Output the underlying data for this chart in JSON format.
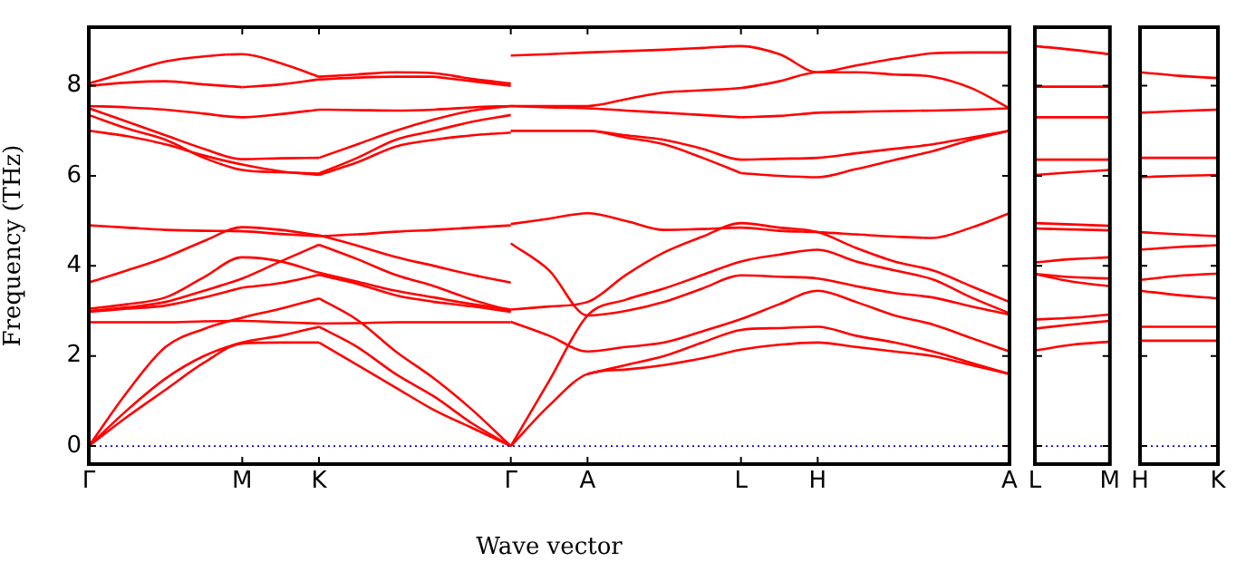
{
  "chart_data": [
    {
      "type": "line",
      "xlabel": "Wave vector",
      "ylabel": "Frequency (THz)",
      "ylim": [
        -0.4,
        9.3
      ],
      "yticks": [
        0,
        2,
        4,
        6,
        8
      ],
      "categories": [
        "Γ",
        null,
        null,
        null,
        "M",
        null,
        "K",
        null,
        null,
        null,
        null,
        "Γ",
        null,
        "A",
        null,
        null,
        null,
        "L",
        null,
        "H",
        null,
        null,
        null,
        null,
        "A"
      ],
      "legend": false,
      "grid": false,
      "marker": "none",
      "line_style": "solid",
      "ref_lines": [
        {
          "axis": "y",
          "value": 0,
          "color": "#0000ff",
          "line_style": "dotted"
        }
      ],
      "series": [
        {
          "color": "#ff0000",
          "values": [
            8.05,
            8.3,
            8.54,
            8.65,
            8.7,
            8.5,
            8.2,
            null,
            null,
            null,
            null,
            null,
            null,
            null,
            null,
            null,
            null,
            null,
            null,
            null,
            null,
            null,
            null,
            null,
            null
          ]
        },
        {
          "color": "#ff0000",
          "values": [
            8.0,
            8.07,
            8.1,
            8.03,
            7.97,
            null,
            null,
            null,
            null,
            null,
            null,
            null,
            null,
            null,
            null,
            null,
            null,
            null,
            null,
            null,
            null,
            null,
            null,
            null,
            null
          ]
        },
        {
          "color": "#ff0000",
          "values": [
            null,
            null,
            null,
            null,
            7.97,
            8.03,
            8.14,
            null,
            null,
            null,
            null,
            null,
            null,
            null,
            null,
            null,
            null,
            null,
            null,
            null,
            null,
            null,
            null,
            null,
            null
          ]
        },
        {
          "color": "#ff0000",
          "values": [
            7.55,
            7.52,
            7.47,
            7.38,
            7.3,
            7.37,
            7.47,
            null,
            null,
            null,
            null,
            null,
            null,
            null,
            null,
            null,
            null,
            null,
            null,
            null,
            null,
            null,
            null,
            null,
            null
          ]
        },
        {
          "color": "#ff0000",
          "values": [
            7.5,
            7.2,
            6.9,
            6.6,
            6.37,
            6.39,
            6.4,
            null,
            null,
            null,
            null,
            null,
            null,
            null,
            null,
            null,
            null,
            null,
            null,
            null,
            null,
            null,
            null,
            null,
            null
          ]
        },
        {
          "color": "#ff0000",
          "values": [
            7.35,
            7.05,
            6.8,
            6.4,
            6.13,
            6.08,
            6.05,
            null,
            null,
            null,
            null,
            null,
            null,
            null,
            null,
            null,
            null,
            null,
            null,
            null,
            null,
            null,
            null,
            null,
            null
          ]
        },
        {
          "color": "#ff0000",
          "values": [
            7.0,
            6.88,
            6.7,
            6.45,
            6.25,
            6.1,
            6.02,
            null,
            null,
            null,
            null,
            null,
            null,
            null,
            null,
            null,
            null,
            null,
            null,
            null,
            null,
            null,
            null,
            null,
            null
          ]
        },
        {
          "color": "#ff0000",
          "values": [
            4.9,
            4.85,
            4.8,
            4.78,
            4.77,
            4.71,
            4.66,
            null,
            null,
            null,
            null,
            null,
            null,
            null,
            null,
            null,
            null,
            null,
            null,
            null,
            null,
            null,
            null,
            null,
            null
          ]
        },
        {
          "color": "#ff0000",
          "values": [
            3.63,
            3.9,
            4.19,
            4.55,
            4.86,
            4.8,
            4.68,
            null,
            null,
            null,
            null,
            null,
            null,
            null,
            null,
            null,
            null,
            null,
            null,
            null,
            null,
            null,
            null,
            null,
            null
          ]
        },
        {
          "color": "#ff0000",
          "values": [
            3.05,
            3.15,
            3.3,
            3.75,
            4.19,
            4.1,
            3.85,
            null,
            null,
            null,
            null,
            null,
            null,
            null,
            null,
            null,
            null,
            null,
            null,
            null,
            null,
            null,
            null,
            null,
            null
          ]
        },
        {
          "color": "#ff0000",
          "values": [
            3.0,
            3.08,
            3.2,
            3.45,
            3.72,
            4.1,
            4.47,
            null,
            null,
            null,
            null,
            null,
            null,
            null,
            null,
            null,
            null,
            null,
            null,
            null,
            null,
            null,
            null,
            null,
            null
          ]
        },
        {
          "color": "#ff0000",
          "values": [
            2.98,
            3.05,
            3.12,
            3.3,
            3.52,
            null,
            null,
            null,
            null,
            null,
            null,
            null,
            null,
            null,
            null,
            null,
            null,
            null,
            null,
            null,
            null,
            null,
            null,
            null,
            null
          ]
        },
        {
          "color": "#ff0000",
          "values": [
            null,
            null,
            null,
            null,
            3.52,
            3.62,
            3.8,
            null,
            null,
            null,
            null,
            null,
            null,
            null,
            null,
            null,
            null,
            null,
            null,
            null,
            null,
            null,
            null,
            null,
            null
          ]
        },
        {
          "color": "#ff0000",
          "values": [
            2.75,
            2.75,
            2.75,
            2.77,
            2.78,
            2.75,
            2.72,
            null,
            null,
            null,
            null,
            null,
            null,
            null,
            null,
            null,
            null,
            null,
            null,
            null,
            null,
            null,
            null,
            null,
            null
          ]
        },
        {
          "color": "#ff0000",
          "values": [
            0,
            1.2,
            2.2,
            2.6,
            2.85,
            3.05,
            3.28,
            null,
            null,
            null,
            null,
            null,
            null,
            null,
            null,
            null,
            null,
            null,
            null,
            null,
            null,
            null,
            null,
            null,
            null
          ]
        },
        {
          "color": "#ff0000",
          "values": [
            0,
            0.8,
            1.5,
            2.0,
            2.3,
            2.45,
            2.65,
            null,
            null,
            null,
            null,
            null,
            null,
            null,
            null,
            null,
            null,
            null,
            null,
            null,
            null,
            null,
            null,
            null,
            null
          ]
        },
        {
          "color": "#ff0000",
          "values": [
            0,
            0.65,
            1.25,
            1.85,
            2.28,
            2.3,
            2.3,
            null,
            null,
            null,
            null,
            null,
            null,
            null,
            null,
            null,
            null,
            null,
            null,
            null,
            null,
            null,
            null,
            null,
            null
          ]
        },
        {
          "color": "#ff0000",
          "values": [
            null,
            null,
            null,
            null,
            null,
            null,
            8.2,
            8.25,
            8.3,
            8.28,
            8.15,
            8.05,
            null,
            null,
            null,
            null,
            null,
            null,
            null,
            null,
            null,
            null,
            null,
            null,
            null
          ]
        },
        {
          "color": "#ff0000",
          "values": [
            null,
            null,
            null,
            null,
            null,
            null,
            8.14,
            8.18,
            8.2,
            8.2,
            null,
            null,
            null,
            null,
            null,
            null,
            null,
            null,
            null,
            null,
            null,
            null,
            null,
            null,
            null
          ]
        },
        {
          "color": "#ff0000",
          "values": [
            null,
            null,
            null,
            null,
            null,
            null,
            null,
            null,
            null,
            8.2,
            8.1,
            8.0,
            null,
            null,
            null,
            null,
            null,
            null,
            null,
            null,
            null,
            null,
            null,
            null,
            null
          ]
        },
        {
          "color": "#ff0000",
          "values": [
            null,
            null,
            null,
            null,
            null,
            null,
            7.47,
            7.46,
            7.45,
            7.47,
            7.52,
            7.55,
            null,
            null,
            null,
            null,
            null,
            null,
            null,
            null,
            null,
            null,
            null,
            null,
            null
          ]
        },
        {
          "color": "#ff0000",
          "values": [
            null,
            null,
            null,
            null,
            null,
            null,
            6.4,
            6.7,
            7.0,
            7.25,
            7.45,
            7.55,
            null,
            null,
            null,
            null,
            null,
            null,
            null,
            null,
            null,
            null,
            null,
            null,
            null
          ]
        },
        {
          "color": "#ff0000",
          "values": [
            null,
            null,
            null,
            null,
            null,
            null,
            6.05,
            6.4,
            6.8,
            7.0,
            7.2,
            7.35,
            null,
            null,
            null,
            null,
            null,
            null,
            null,
            null,
            null,
            null,
            null,
            null,
            null
          ]
        },
        {
          "color": "#ff0000",
          "values": [
            null,
            null,
            null,
            null,
            null,
            null,
            6.02,
            6.3,
            6.65,
            6.8,
            6.9,
            6.96,
            null,
            null,
            null,
            null,
            null,
            null,
            null,
            null,
            null,
            null,
            null,
            null,
            null
          ]
        },
        {
          "color": "#ff0000",
          "values": [
            null,
            null,
            null,
            null,
            null,
            null,
            4.66,
            4.7,
            4.76,
            4.8,
            4.85,
            4.9,
            null,
            null,
            null,
            null,
            null,
            null,
            null,
            null,
            null,
            null,
            null,
            null,
            null
          ]
        },
        {
          "color": "#ff0000",
          "values": [
            null,
            null,
            null,
            null,
            null,
            null,
            4.68,
            4.45,
            4.2,
            4.0,
            3.8,
            3.63,
            null,
            null,
            null,
            null,
            null,
            null,
            null,
            null,
            null,
            null,
            null,
            null,
            null
          ]
        },
        {
          "color": "#ff0000",
          "values": [
            null,
            null,
            null,
            null,
            null,
            null,
            3.85,
            3.65,
            3.45,
            3.3,
            3.15,
            3.03,
            null,
            null,
            null,
            null,
            null,
            null,
            null,
            null,
            null,
            null,
            null,
            null,
            null
          ]
        },
        {
          "color": "#ff0000",
          "values": [
            null,
            null,
            null,
            null,
            null,
            null,
            4.47,
            4.15,
            3.8,
            3.55,
            3.25,
            3.0,
            null,
            null,
            null,
            null,
            null,
            null,
            null,
            null,
            null,
            null,
            null,
            null,
            null
          ]
        },
        {
          "color": "#ff0000",
          "values": [
            null,
            null,
            null,
            null,
            null,
            null,
            3.8,
            3.6,
            3.35,
            3.2,
            null,
            null,
            null,
            null,
            null,
            null,
            null,
            null,
            null,
            null,
            null,
            null,
            null,
            null,
            null
          ]
        },
        {
          "color": "#ff0000",
          "values": [
            null,
            null,
            null,
            null,
            null,
            null,
            null,
            null,
            null,
            3.2,
            3.1,
            2.98,
            null,
            null,
            null,
            null,
            null,
            null,
            null,
            null,
            null,
            null,
            null,
            null,
            null
          ]
        },
        {
          "color": "#ff0000",
          "values": [
            null,
            null,
            null,
            null,
            null,
            null,
            2.72,
            2.73,
            2.75,
            2.75,
            2.75,
            2.75,
            null,
            null,
            null,
            null,
            null,
            null,
            null,
            null,
            null,
            null,
            null,
            null,
            null
          ]
        },
        {
          "color": "#ff0000",
          "values": [
            null,
            null,
            null,
            null,
            null,
            null,
            3.28,
            2.8,
            2.1,
            1.5,
            0.8,
            0,
            null,
            null,
            null,
            null,
            null,
            null,
            null,
            null,
            null,
            null,
            null,
            null,
            null
          ]
        },
        {
          "color": "#ff0000",
          "values": [
            null,
            null,
            null,
            null,
            null,
            null,
            2.65,
            2.2,
            1.6,
            1.1,
            0.5,
            0,
            null,
            null,
            null,
            null,
            null,
            null,
            null,
            null,
            null,
            null,
            null,
            null,
            null
          ]
        },
        {
          "color": "#ff0000",
          "values": [
            null,
            null,
            null,
            null,
            null,
            null,
            2.3,
            1.8,
            1.3,
            0.8,
            0.4,
            0,
            null,
            null,
            null,
            null,
            null,
            null,
            null,
            null,
            null,
            null,
            null,
            null,
            null
          ]
        },
        {
          "color": "#ff0000",
          "values": [
            null,
            null,
            null,
            null,
            null,
            null,
            null,
            null,
            null,
            null,
            null,
            8.67,
            8.7,
            8.74,
            8.77,
            8.8,
            8.84,
            8.88,
            8.7,
            8.3,
            8.45,
            8.6,
            8.72,
            8.74,
            8.74
          ]
        },
        {
          "color": "#ff0000",
          "values": [
            null,
            null,
            null,
            null,
            null,
            null,
            null,
            null,
            null,
            null,
            null,
            7.55,
            7.55,
            7.55,
            7.7,
            7.85,
            7.9,
            7.95,
            8.1,
            8.3,
            8.3,
            8.25,
            8.2,
            7.95,
            7.5
          ]
        },
        {
          "color": "#ff0000",
          "values": [
            null,
            null,
            null,
            null,
            null,
            null,
            null,
            null,
            null,
            null,
            null,
            7.55,
            7.52,
            7.5,
            7.45,
            7.4,
            7.35,
            7.3,
            null,
            null,
            null,
            null,
            null,
            null,
            null
          ]
        },
        {
          "color": "#ff0000",
          "values": [
            null,
            null,
            null,
            null,
            null,
            null,
            null,
            null,
            null,
            null,
            null,
            null,
            null,
            null,
            null,
            null,
            null,
            7.3,
            7.33,
            7.4,
            7.42,
            7.44,
            7.45,
            7.47,
            7.5
          ]
        },
        {
          "color": "#ff0000",
          "values": [
            null,
            null,
            null,
            null,
            null,
            null,
            null,
            null,
            null,
            null,
            null,
            7.0,
            7.0,
            7.0,
            6.9,
            6.8,
            6.6,
            6.36,
            6.38,
            6.4,
            6.5,
            6.6,
            6.7,
            6.85,
            7.0
          ]
        },
        {
          "color": "#ff0000",
          "values": [
            null,
            null,
            null,
            null,
            null,
            null,
            null,
            null,
            null,
            null,
            null,
            7.0,
            7.0,
            7.0,
            6.85,
            6.7,
            6.4,
            6.06,
            null,
            null,
            null,
            null,
            null,
            null,
            null
          ]
        },
        {
          "color": "#ff0000",
          "values": [
            null,
            null,
            null,
            null,
            null,
            null,
            null,
            null,
            null,
            null,
            null,
            null,
            null,
            null,
            null,
            null,
            null,
            6.06,
            6.0,
            5.97,
            6.15,
            6.35,
            6.55,
            6.8,
            7.0
          ]
        },
        {
          "color": "#ff0000",
          "values": [
            null,
            null,
            null,
            null,
            null,
            null,
            null,
            null,
            null,
            null,
            null,
            4.93,
            5.05,
            5.17,
            5.0,
            4.8,
            4.82,
            4.85,
            4.78,
            4.75,
            4.7,
            4.65,
            4.62,
            4.85,
            5.17
          ]
        },
        {
          "color": "#ff0000",
          "values": [
            null,
            null,
            null,
            null,
            null,
            null,
            null,
            null,
            null,
            null,
            null,
            4.5,
            3.9,
            2.9,
            3.0,
            3.2,
            3.5,
            3.79,
            3.76,
            3.72,
            3.55,
            3.4,
            3.3,
            3.1,
            2.92
          ]
        },
        {
          "color": "#ff0000",
          "values": [
            null,
            null,
            null,
            null,
            null,
            null,
            null,
            null,
            null,
            null,
            null,
            3.03,
            3.1,
            3.2,
            3.8,
            4.3,
            4.65,
            4.95,
            4.85,
            4.75,
            4.4,
            4.1,
            3.9,
            3.55,
            3.2
          ]
        },
        {
          "color": "#ff0000",
          "values": [
            null,
            null,
            null,
            null,
            null,
            null,
            null,
            null,
            null,
            null,
            null,
            0,
            1.45,
            2.9,
            3.25,
            3.5,
            3.8,
            4.1,
            4.25,
            4.36,
            4.1,
            3.9,
            3.7,
            3.3,
            2.95
          ]
        },
        {
          "color": "#ff0000",
          "values": [
            null,
            null,
            null,
            null,
            null,
            null,
            null,
            null,
            null,
            null,
            null,
            2.76,
            2.45,
            2.1,
            2.2,
            2.3,
            2.55,
            2.82,
            3.15,
            3.45,
            3.2,
            2.9,
            2.7,
            2.4,
            2.1
          ]
        },
        {
          "color": "#ff0000",
          "values": [
            null,
            null,
            null,
            null,
            null,
            null,
            null,
            null,
            null,
            null,
            null,
            0,
            0.9,
            1.6,
            1.7,
            1.8,
            1.95,
            2.14,
            2.25,
            2.3,
            2.2,
            2.1,
            2.0,
            1.8,
            1.6
          ]
        },
        {
          "color": "#ff0000",
          "values": [
            null,
            null,
            null,
            null,
            null,
            null,
            null,
            null,
            null,
            null,
            null,
            null,
            null,
            1.6,
            1.8,
            2.0,
            2.3,
            2.58,
            2.62,
            2.65,
            2.45,
            2.3,
            2.1,
            1.85,
            1.6
          ]
        }
      ]
    },
    {
      "type": "line",
      "ylim": [
        -0.4,
        9.3
      ],
      "yticks": [
        0,
        2,
        4,
        6,
        8
      ],
      "tick_labels": "x",
      "categories": [
        "L",
        null,
        "M"
      ],
      "legend": false,
      "grid": false,
      "marker": "none",
      "line_style": "solid",
      "ref_lines": [
        {
          "axis": "y",
          "value": 0,
          "color": "#0000ff",
          "line_style": "dotted"
        }
      ],
      "series": [
        {
          "color": "#ff0000",
          "values": [
            8.88,
            8.8,
            8.7
          ]
        },
        {
          "color": "#ff0000",
          "values": [
            7.98,
            7.98,
            7.98
          ]
        },
        {
          "color": "#ff0000",
          "values": [
            7.3,
            7.3,
            7.3
          ]
        },
        {
          "color": "#ff0000",
          "values": [
            6.36,
            6.36,
            6.36
          ]
        },
        {
          "color": "#ff0000",
          "values": [
            6.02,
            6.08,
            6.13
          ]
        },
        {
          "color": "#ff0000",
          "values": [
            4.95,
            4.92,
            4.89
          ]
        },
        {
          "color": "#ff0000",
          "values": [
            4.83,
            4.81,
            4.79
          ]
        },
        {
          "color": "#ff0000",
          "values": [
            4.08,
            4.15,
            4.19
          ]
        },
        {
          "color": "#ff0000",
          "values": [
            3.82,
            3.75,
            3.72
          ]
        },
        {
          "color": "#ff0000",
          "values": [
            3.82,
            3.65,
            3.55
          ]
        },
        {
          "color": "#ff0000",
          "values": [
            2.81,
            2.85,
            2.92
          ]
        },
        {
          "color": "#ff0000",
          "values": [
            2.61,
            2.7,
            2.78
          ]
        },
        {
          "color": "#ff0000",
          "values": [
            2.12,
            2.25,
            2.32
          ]
        }
      ]
    },
    {
      "type": "line",
      "ylim": [
        -0.4,
        9.3
      ],
      "yticks": [
        0,
        2,
        4,
        6,
        8
      ],
      "tick_labels": "x",
      "categories": [
        "H",
        null,
        "K"
      ],
      "legend": false,
      "grid": false,
      "marker": "none",
      "line_style": "solid",
      "ref_lines": [
        {
          "axis": "y",
          "value": 0,
          "color": "#0000ff",
          "line_style": "dotted"
        }
      ],
      "series": [
        {
          "color": "#ff0000",
          "values": [
            8.3,
            8.22,
            8.17
          ]
        },
        {
          "color": "#ff0000",
          "values": [
            7.4,
            7.44,
            7.47
          ]
        },
        {
          "color": "#ff0000",
          "values": [
            6.4,
            6.4,
            6.4
          ]
        },
        {
          "color": "#ff0000",
          "values": [
            5.97,
            6.0,
            6.02
          ]
        },
        {
          "color": "#ff0000",
          "values": [
            4.75,
            4.7,
            4.66
          ]
        },
        {
          "color": "#ff0000",
          "values": [
            4.36,
            4.42,
            4.46
          ]
        },
        {
          "color": "#ff0000",
          "values": [
            3.69,
            3.78,
            3.83
          ]
        },
        {
          "color": "#ff0000",
          "values": [
            3.45,
            3.35,
            3.28
          ]
        },
        {
          "color": "#ff0000",
          "values": [
            2.65,
            2.65,
            2.65
          ]
        },
        {
          "color": "#ff0000",
          "values": [
            2.34,
            2.34,
            2.34
          ]
        }
      ]
    }
  ]
}
